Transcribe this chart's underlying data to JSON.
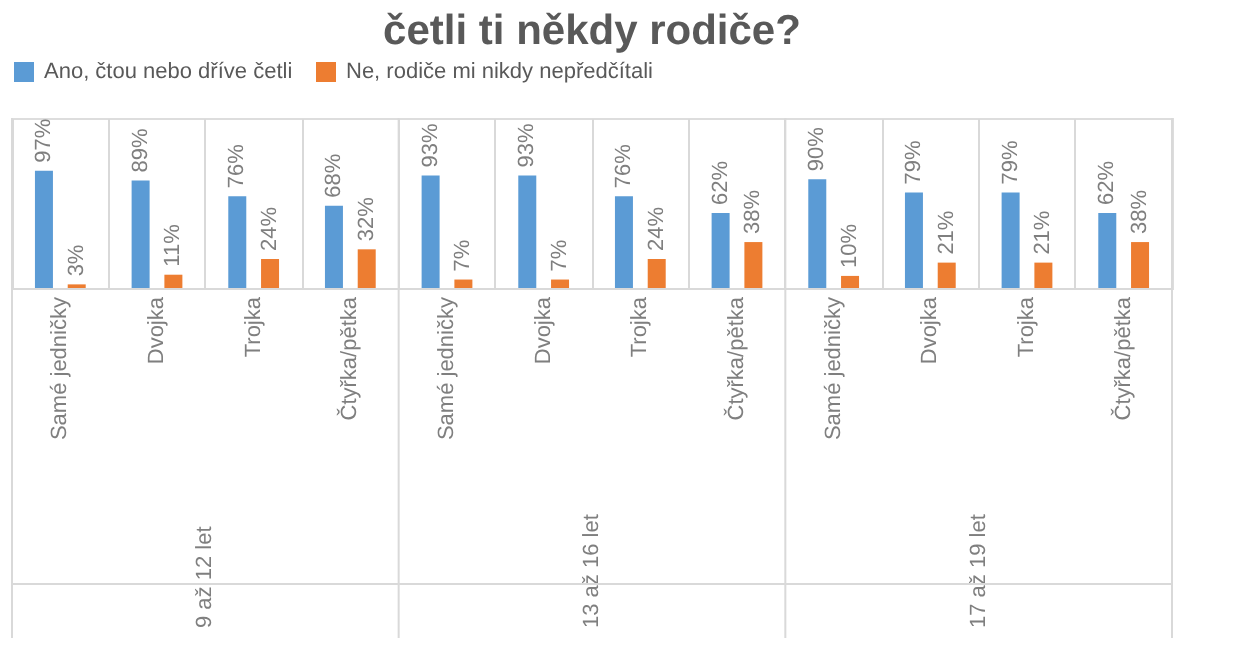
{
  "chart_data": {
    "type": "bar",
    "title": "četli ti někdy rodiče?",
    "categories": [
      "Samé jedničky",
      "Dvojka",
      "Trojka",
      "Čtyřka/pětka",
      "Samé jedničky",
      "Dvojka",
      "Trojka",
      "Čtyřka/pětka",
      "Samé jedničky",
      "Dvojka",
      "Trojka",
      "Čtyřka/pětka"
    ],
    "series": [
      {
        "name": "Ano, čtou nebo dříve četli",
        "color": "#5b9bd5",
        "values": [
          97,
          89,
          76,
          68,
          93,
          93,
          76,
          62,
          90,
          79,
          79,
          62
        ],
        "value_labels": [
          "97%",
          "89%",
          "76%",
          "68%",
          "93%",
          "93%",
          "76%",
          "62%",
          "90%",
          "79%",
          "79%",
          "62%"
        ]
      },
      {
        "name": "Ne, rodiče mi nikdy nepředčítali",
        "color": "#ed7d31",
        "values": [
          3,
          11,
          24,
          32,
          7,
          7,
          24,
          38,
          10,
          21,
          21,
          38
        ],
        "value_labels": [
          "3%",
          "11%",
          "24%",
          "32%",
          "7%",
          "7%",
          "24%",
          "38%",
          "10%",
          "21%",
          "21%",
          "38%"
        ]
      }
    ],
    "annotations": [
      "9 až 12 let",
      "13 až 16 let",
      "17 až 19 let"
    ],
    "legend": "top",
    "grid": "x"
  }
}
